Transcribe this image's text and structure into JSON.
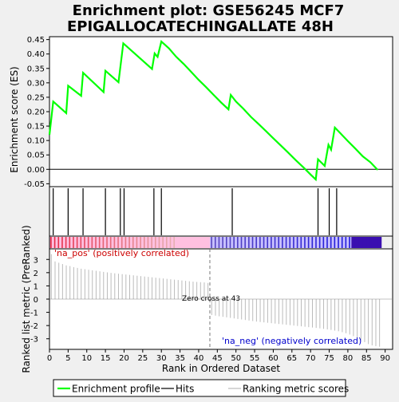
{
  "chart_data": {
    "type": "line",
    "title_line1": "Enrichment plot: GSE56245 MCF7",
    "title_line2": "EPIGALLOCATECHINGALLATE 48H",
    "xlabel": "Rank in Ordered Dataset",
    "ylabel_top": "Enrichment score (ES)",
    "ylabel_bottom": "Ranked list metric (PreRanked)",
    "xlim": [
      0,
      92
    ],
    "es_ylim": [
      -0.06,
      0.46
    ],
    "metric_ylim": [
      -3.8,
      3.8
    ],
    "x_ticks": [
      0,
      5,
      10,
      15,
      20,
      25,
      30,
      35,
      40,
      45,
      50,
      55,
      60,
      65,
      70,
      75,
      80,
      85,
      90
    ],
    "es_ticks": [
      -0.05,
      0.0,
      0.05,
      0.1,
      0.15,
      0.2,
      0.25,
      0.3,
      0.35,
      0.4,
      0.45
    ],
    "es_tick_labels": [
      "-0.05",
      "0.00",
      "0.05",
      "0.10",
      "0.15",
      "0.20",
      "0.25",
      "0.30",
      "0.35",
      "0.40",
      "0.45"
    ],
    "metric_ticks": [
      -3,
      -2,
      -1,
      0,
      1,
      2,
      3
    ],
    "series": [
      {
        "name": "Enrichment profile",
        "color": "#00ff00",
        "x": [
          0,
          1,
          4.5,
          5,
          8.5,
          9,
          14.5,
          15,
          18.5,
          19.8,
          27.5,
          28.2,
          29,
          30,
          32,
          34,
          36,
          38,
          40,
          42,
          44,
          46,
          48,
          48.6,
          50,
          52,
          54,
          56,
          58,
          60,
          62,
          64,
          66,
          68,
          70,
          71.4,
          72,
          73.8,
          74.8,
          75.5,
          76.5,
          78,
          80,
          82,
          84,
          86,
          88
        ],
        "y": [
          0.12,
          0.235,
          0.195,
          0.29,
          0.255,
          0.335,
          0.268,
          0.342,
          0.302,
          0.437,
          0.348,
          0.402,
          0.39,
          0.443,
          0.42,
          0.39,
          0.365,
          0.338,
          0.31,
          0.285,
          0.258,
          0.232,
          0.208,
          0.258,
          0.235,
          0.21,
          0.182,
          0.158,
          0.133,
          0.108,
          0.083,
          0.058,
          0.032,
          0.008,
          -0.018,
          -0.035,
          0.035,
          0.012,
          0.085,
          0.068,
          0.145,
          0.125,
          0.098,
          0.072,
          0.045,
          0.025,
          -0.002
        ]
      }
    ],
    "hits": [
      1,
      5,
      9,
      15,
      19,
      20,
      28,
      30,
      49,
      72,
      75,
      77
    ],
    "zero_cross_rank": 43,
    "zero_cross_label": "Zero cross at 43",
    "metric_by_rank": [
      3.4,
      2.85,
      2.75,
      2.65,
      2.55,
      2.5,
      2.42,
      2.36,
      2.3,
      2.26,
      2.22,
      2.18,
      2.14,
      2.1,
      2.06,
      2.02,
      1.98,
      1.95,
      1.92,
      1.89,
      1.86,
      1.83,
      1.8,
      1.77,
      1.74,
      1.71,
      1.68,
      1.65,
      1.62,
      1.59,
      1.56,
      1.53,
      1.5,
      1.47,
      1.44,
      1.41,
      1.38,
      1.35,
      1.32,
      1.3,
      1.28,
      1.26,
      1.22,
      -1.2,
      -1.25,
      -1.3,
      -1.34,
      -1.38,
      -1.42,
      -1.46,
      -1.5,
      -1.54,
      -1.58,
      -1.62,
      -1.66,
      -1.7,
      -1.73,
      -1.76,
      -1.79,
      -1.82,
      -1.85,
      -1.88,
      -1.91,
      -1.94,
      -1.97,
      -2.0,
      -2.03,
      -2.06,
      -2.09,
      -2.12,
      -2.15,
      -2.18,
      -2.21,
      -2.25,
      -2.29,
      -2.33,
      -2.38,
      -2.43,
      -2.5,
      -2.58,
      -2.68,
      -2.8,
      -2.95,
      -3.1,
      -3.25,
      -3.4,
      -3.5,
      -3.55,
      -3.6
    ],
    "band_pos_label": "'na_pos' (positively correlated)",
    "band_neg_label": "'na_neg' (negatively correlated)",
    "legend": [
      {
        "label": "Enrichment profile",
        "color": "#00ff00"
      },
      {
        "label": "Hits",
        "color": "#000000"
      },
      {
        "label": "Ranking metric scores",
        "color": "#bbbbbb"
      }
    ]
  }
}
